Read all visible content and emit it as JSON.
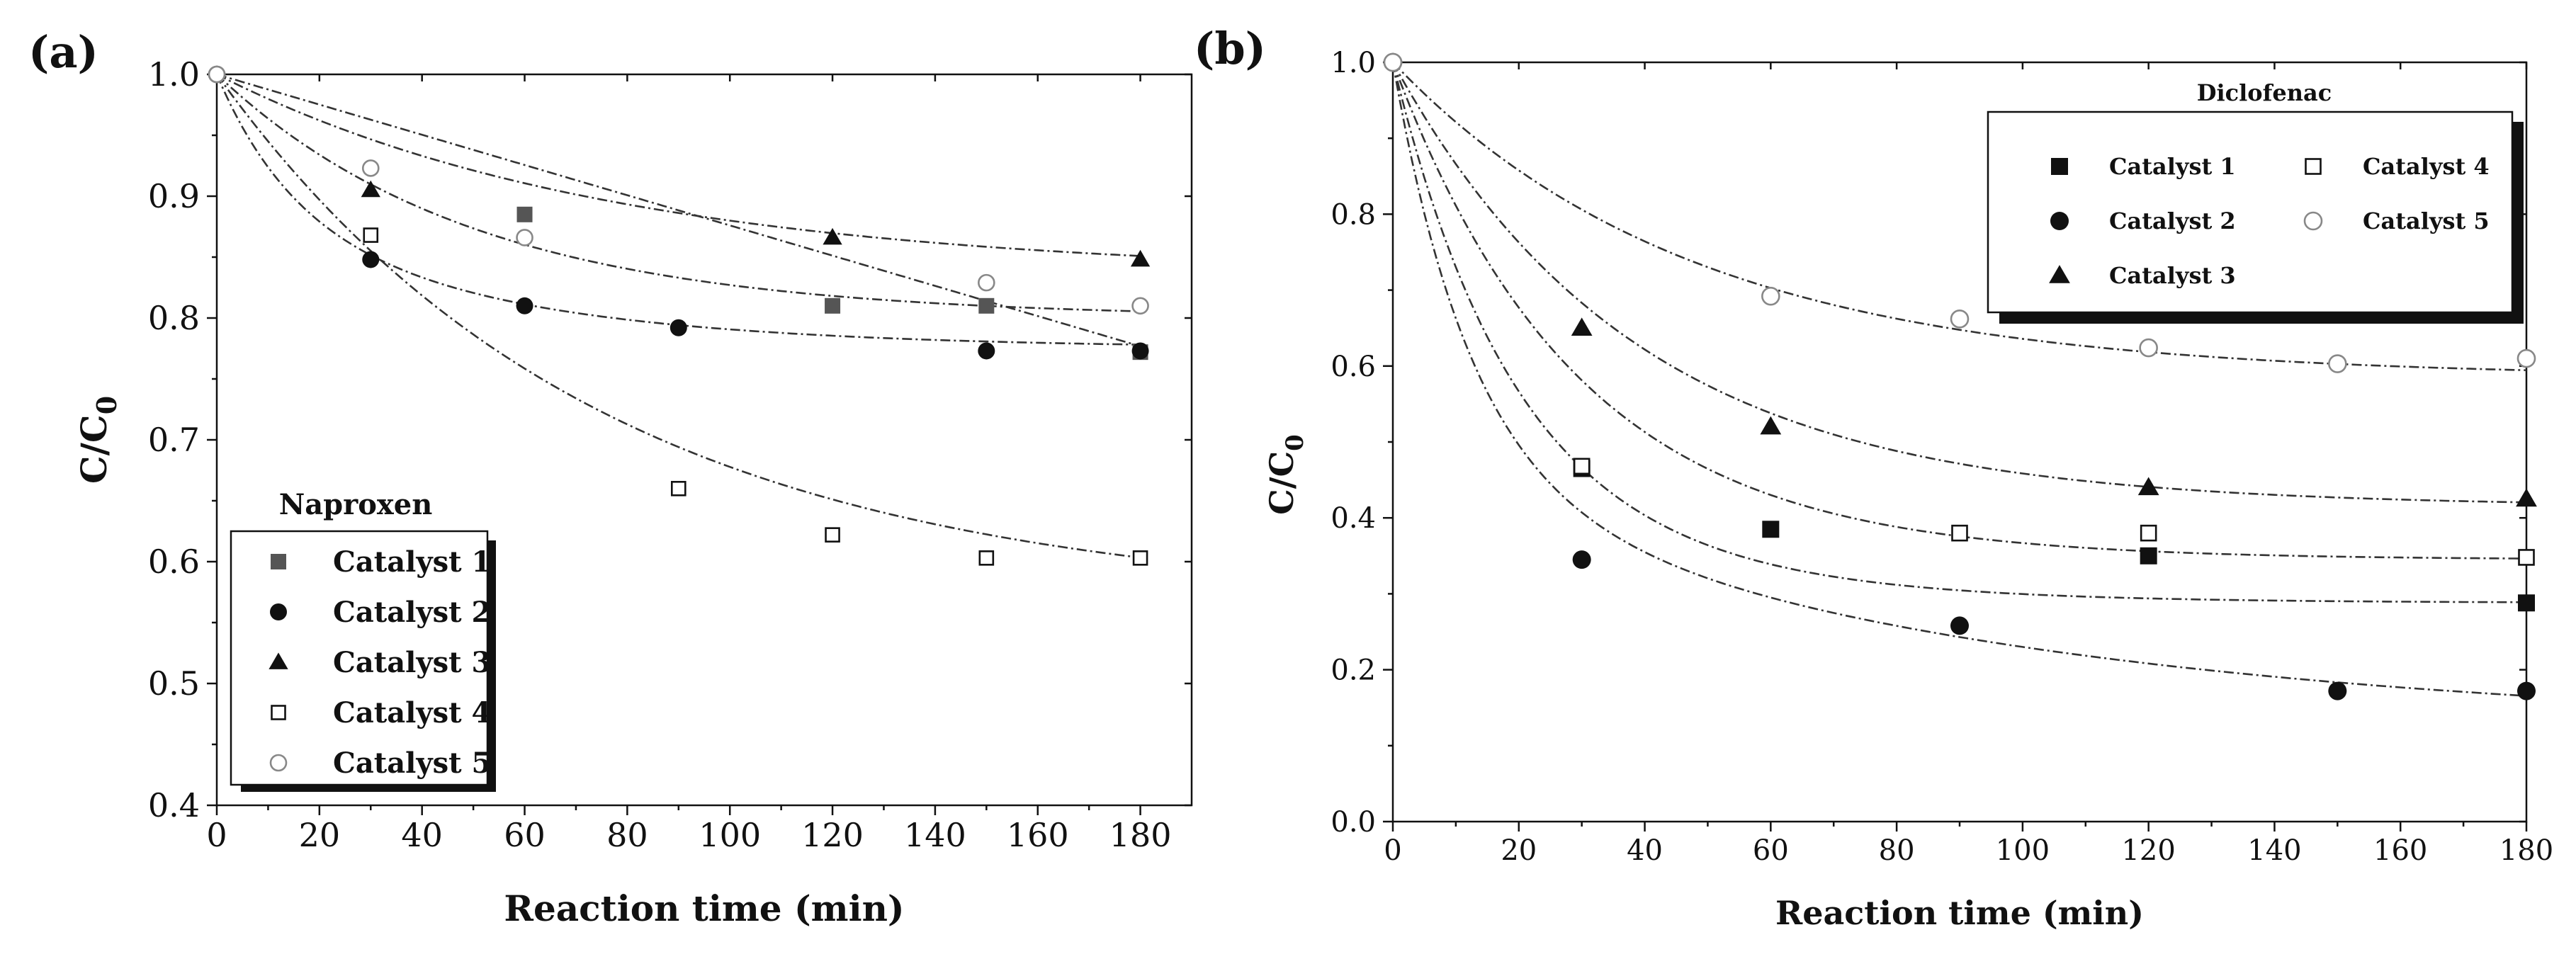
{
  "chart_data": [
    {
      "panel": "(a)",
      "type": "scatter",
      "title": "",
      "legend_title": "Naproxen",
      "xlabel": "Reaction time (min)",
      "ylabel_main": "C/C",
      "ylabel_sub": "0",
      "xlim": [
        0,
        190
      ],
      "ylim": [
        0.4,
        1.0
      ],
      "xticks": [
        0,
        20,
        40,
        60,
        80,
        100,
        120,
        140,
        160,
        180
      ],
      "yticks": [
        0.4,
        0.5,
        0.6,
        0.7,
        0.8,
        0.9,
        1.0
      ],
      "ytick_labels": [
        "0.4",
        "0.5",
        "0.6",
        "0.7",
        "0.8",
        "0.9",
        "1.0"
      ],
      "legend_position": "bottom-left",
      "series": [
        {
          "name": "Catalyst 1",
          "marker": "square-filled",
          "color": "#555555",
          "x": [
            0,
            60,
            120,
            150,
            180
          ],
          "y": [
            1.0,
            0.885,
            0.81,
            0.81,
            0.772
          ],
          "fit": {
            "kind": "linear-ish",
            "y0": 1.0,
            "slope": -0.00124
          }
        },
        {
          "name": "Catalyst 2",
          "marker": "circle-filled",
          "color": "#111111",
          "x": [
            0,
            30,
            60,
            90,
            150,
            180
          ],
          "y": [
            1.0,
            0.848,
            0.81,
            0.792,
            0.773,
            0.773
          ],
          "fit": {
            "kind": "exp-decay",
            "plateau": 0.775,
            "a1": 0.11,
            "k1": 0.07,
            "a2": 0.115,
            "k2": 0.02
          }
        },
        {
          "name": "Catalyst 3",
          "marker": "triangle-filled",
          "color": "#111111",
          "x": [
            0,
            30,
            120,
            180
          ],
          "y": [
            1.0,
            0.905,
            0.866,
            0.848
          ],
          "fit": {
            "kind": "exp-decay",
            "plateau": 0.835,
            "a1": 0.165,
            "k1": 0.013,
            "a2": 0,
            "k2": 0.01
          }
        },
        {
          "name": "Catalyst 4",
          "marker": "square-open",
          "color": "#111111",
          "x": [
            0,
            30,
            90,
            120,
            150,
            180
          ],
          "y": [
            1.0,
            0.868,
            0.66,
            0.622,
            0.603,
            0.603
          ],
          "fit": {
            "kind": "exp-decay",
            "plateau": 0.565,
            "a1": 0.435,
            "k1": 0.0135,
            "a2": 0,
            "k2": 0.01
          }
        },
        {
          "name": "Catalyst 5",
          "marker": "circle-open",
          "color": "#888888",
          "x": [
            0,
            30,
            60,
            150,
            180
          ],
          "y": [
            1.0,
            0.923,
            0.866,
            0.829,
            0.81
          ],
          "fit": {
            "kind": "exp-decay",
            "plateau": 0.8,
            "a1": 0.2,
            "k1": 0.02,
            "a2": 0,
            "k2": 0.01
          }
        }
      ]
    },
    {
      "panel": "(b)",
      "type": "scatter",
      "title": "",
      "legend_title": "Diclofenac",
      "xlabel": "Reaction time (min)",
      "ylabel_main": "C/C",
      "ylabel_sub": "0",
      "xlim": [
        0,
        180
      ],
      "ylim": [
        0.0,
        1.0
      ],
      "xticks": [
        0,
        20,
        40,
        60,
        80,
        100,
        120,
        140,
        160,
        180
      ],
      "yticks": [
        0.0,
        0.2,
        0.4,
        0.6,
        0.8,
        1.0
      ],
      "ytick_labels": [
        "0.0",
        "0.2",
        "0.4",
        "0.6",
        "0.8",
        "1.0"
      ],
      "legend_position": "top-right",
      "series": [
        {
          "name": "Catalyst 1",
          "marker": "square-filled",
          "color": "#111111",
          "x": [
            0,
            30,
            60,
            120,
            180
          ],
          "y": [
            1.0,
            0.465,
            0.385,
            0.35,
            0.288
          ],
          "fit": {
            "kind": "exp-decay",
            "plateau": 0.288,
            "a1": 0.52,
            "k1": 0.055,
            "a2": 0.192,
            "k2": 0.03
          }
        },
        {
          "name": "Catalyst 2",
          "marker": "circle-filled",
          "color": "#111111",
          "x": [
            0,
            30,
            90,
            150,
            180
          ],
          "y": [
            1.0,
            0.345,
            0.258,
            0.172,
            0.172
          ],
          "fit": {
            "kind": "exp-decay",
            "plateau": 0.12,
            "a1": 0.55,
            "k1": 0.08,
            "a2": 0.33,
            "k2": 0.011
          }
        },
        {
          "name": "Catalyst 3",
          "marker": "triangle-filled",
          "color": "#111111",
          "x": [
            0,
            30,
            60,
            120,
            180
          ],
          "y": [
            1.0,
            0.65,
            0.52,
            0.44,
            0.425
          ],
          "fit": {
            "kind": "exp-decay",
            "plateau": 0.415,
            "a1": 0.585,
            "k1": 0.026,
            "a2": 0,
            "k2": 0.01
          }
        },
        {
          "name": "Catalyst 4",
          "marker": "square-open",
          "color": "#111111",
          "x": [
            0,
            30,
            90,
            120,
            180
          ],
          "y": [
            1.0,
            0.468,
            0.38,
            0.38,
            0.348
          ],
          "fit": {
            "kind": "exp-decay",
            "plateau": 0.345,
            "a1": 0.655,
            "k1": 0.034,
            "a2": 0,
            "k2": 0.01
          }
        },
        {
          "name": "Catalyst 5",
          "marker": "circle-open",
          "color": "#888888",
          "x": [
            0,
            60,
            90,
            120,
            150,
            180
          ],
          "y": [
            1.0,
            0.692,
            0.662,
            0.624,
            0.603,
            0.61
          ],
          "fit": {
            "kind": "exp-decay",
            "plateau": 0.585,
            "a1": 0.415,
            "k1": 0.021,
            "a2": 0,
            "k2": 0.01
          }
        }
      ]
    }
  ]
}
